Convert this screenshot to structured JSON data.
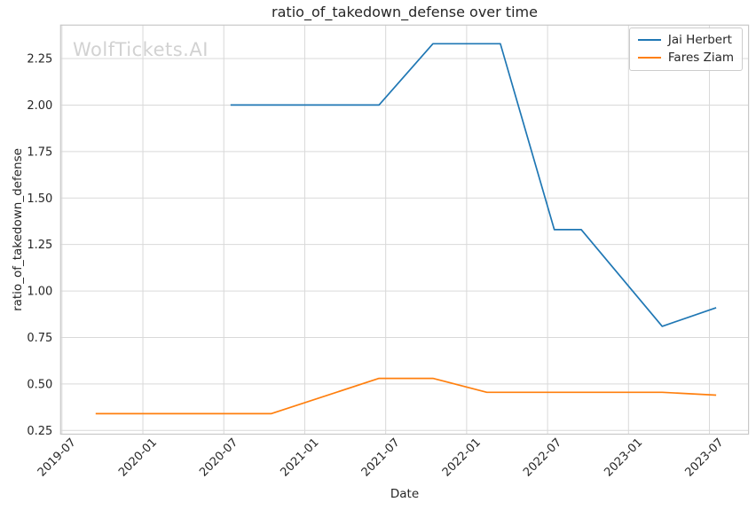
{
  "watermark": "WolfTickets.AI",
  "colors": {
    "series_blue": "#1f77b4",
    "series_orange": "#ff7f0e",
    "grid": "#d9d9d9",
    "spine": "#c8c8c8",
    "text": "#262626",
    "watermark": "#d2d2d2"
  },
  "legend": {
    "position": "upper right",
    "entries": [
      "Jai Herbert",
      "Fares Ziam"
    ]
  },
  "chart_data": {
    "type": "line",
    "title": "ratio_of_takedown_defense over time",
    "xlabel": "Date",
    "ylabel": "ratio_of_takedown_defense",
    "x_tick_labels": [
      "2019-07",
      "2020-01",
      "2020-07",
      "2021-01",
      "2021-07",
      "2022-01",
      "2022-07",
      "2023-01",
      "2023-07"
    ],
    "y_tick_labels": [
      "0.25",
      "0.50",
      "0.75",
      "1.00",
      "1.25",
      "1.50",
      "1.75",
      "2.00",
      "2.25"
    ],
    "ylim": [
      0.23,
      2.43
    ],
    "x_domain_months_from_2019_07": [
      -0.1,
      50.9
    ],
    "grid": true,
    "legend_position": "upper right",
    "series": [
      {
        "name": "Jai Herbert",
        "color": "#1f77b4",
        "points": [
          {
            "date": "2020-07",
            "value": 2.0
          },
          {
            "date": "2021-06",
            "value": 2.0
          },
          {
            "date": "2021-10",
            "value": 2.33
          },
          {
            "date": "2022-03",
            "value": 2.33
          },
          {
            "date": "2022-07",
            "value": 1.33
          },
          {
            "date": "2022-09",
            "value": 1.33
          },
          {
            "date": "2023-03",
            "value": 0.81
          },
          {
            "date": "2023-07",
            "value": 0.91
          }
        ]
      },
      {
        "name": "Fares Ziam",
        "color": "#ff7f0e",
        "points": [
          {
            "date": "2019-09",
            "value": 0.34
          },
          {
            "date": "2020-10",
            "value": 0.34
          },
          {
            "date": "2021-06",
            "value": 0.53
          },
          {
            "date": "2021-10",
            "value": 0.53
          },
          {
            "date": "2022-02",
            "value": 0.455
          },
          {
            "date": "2023-03",
            "value": 0.455
          },
          {
            "date": "2023-07",
            "value": 0.44
          }
        ]
      }
    ]
  }
}
